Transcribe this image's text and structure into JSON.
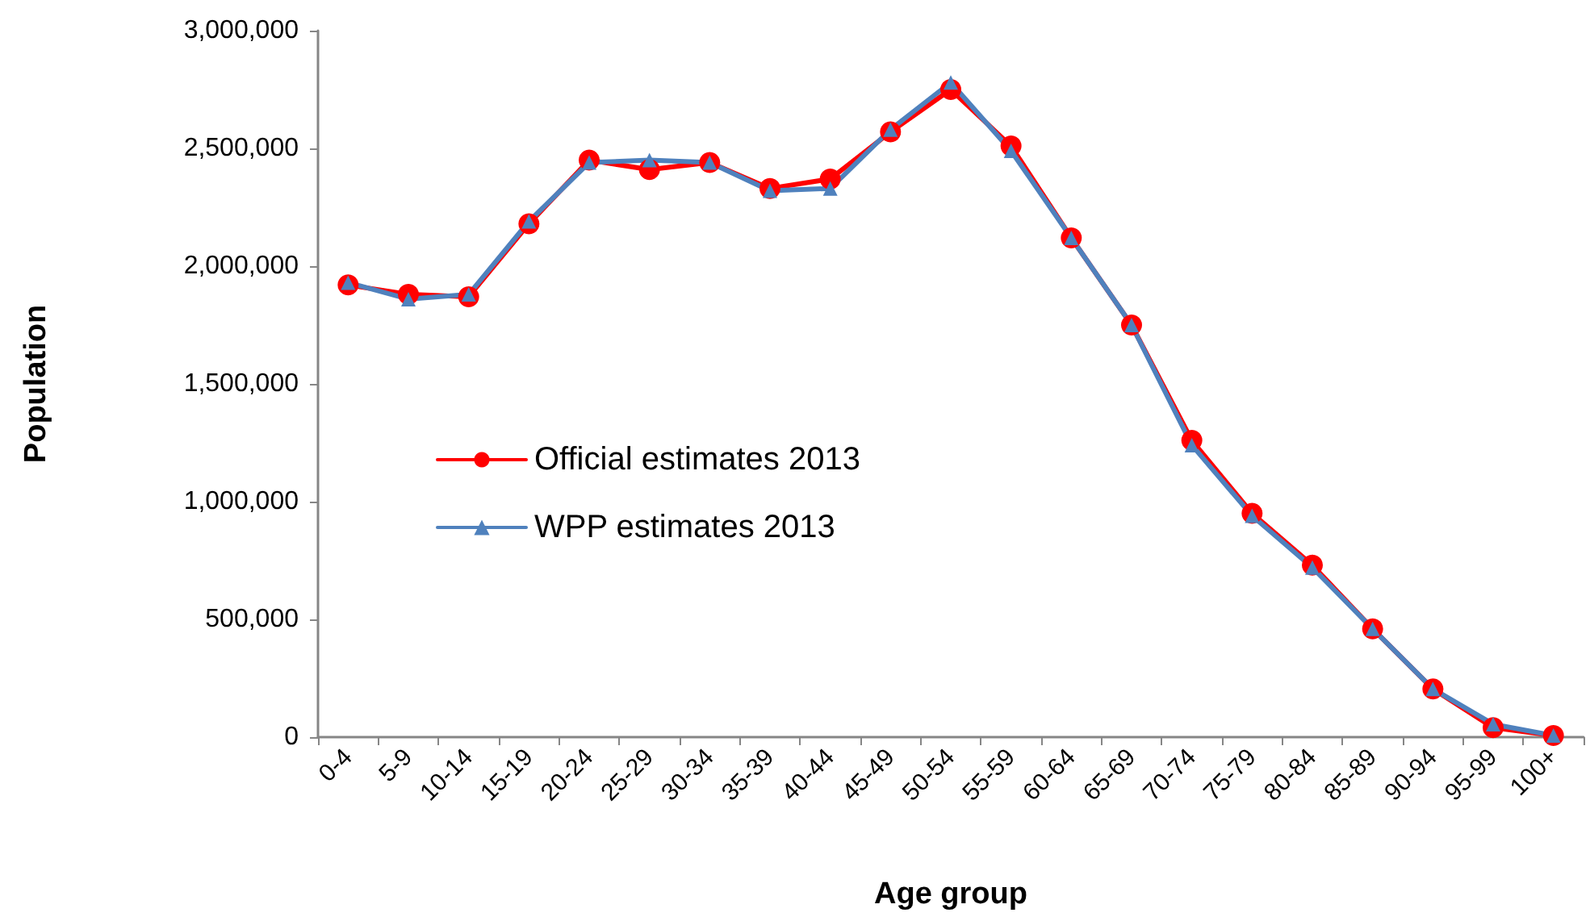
{
  "chart_data": {
    "type": "line",
    "xlabel": "Age group",
    "ylabel": "Population",
    "categories": [
      "0-4",
      "5-9",
      "10-14",
      "15-19",
      "20-24",
      "25-29",
      "30-34",
      "35-39",
      "40-44",
      "45-49",
      "50-54",
      "55-59",
      "60-64",
      "65-69",
      "70-74",
      "75-79",
      "80-84",
      "85-89",
      "90-94",
      "95-99",
      "100+"
    ],
    "series": [
      {
        "name": "Official estimates 2013",
        "color": "#ff0000",
        "marker": "circle",
        "values": [
          1920000,
          1880000,
          1870000,
          2180000,
          2450000,
          2410000,
          2440000,
          2330000,
          2370000,
          2570000,
          2750000,
          2510000,
          2120000,
          1750000,
          1260000,
          950000,
          730000,
          460000,
          205000,
          40000,
          7000
        ]
      },
      {
        "name": "WPP estimates 2013",
        "color": "#4f81bd",
        "marker": "triangle",
        "values": [
          1930000,
          1860000,
          1880000,
          2190000,
          2440000,
          2450000,
          2440000,
          2320000,
          2330000,
          2580000,
          2780000,
          2490000,
          2120000,
          1750000,
          1240000,
          940000,
          720000,
          460000,
          205000,
          55000,
          7000
        ]
      }
    ],
    "ylim": [
      0,
      3000000
    ],
    "yticks": [
      0,
      {
        "value": 500000,
        "label": "500,000"
      },
      {
        "value": 1000000,
        "label": "1,000,000"
      },
      {
        "value": 1500000,
        "label": "1,500,000"
      },
      {
        "value": 2000000,
        "label": "2,000,000"
      },
      {
        "value": 2500000,
        "label": "2,500,000"
      },
      {
        "value": 3000000,
        "label": "3,000,000"
      }
    ],
    "grid": false,
    "legend": "left",
    "line_style": "solid"
  }
}
